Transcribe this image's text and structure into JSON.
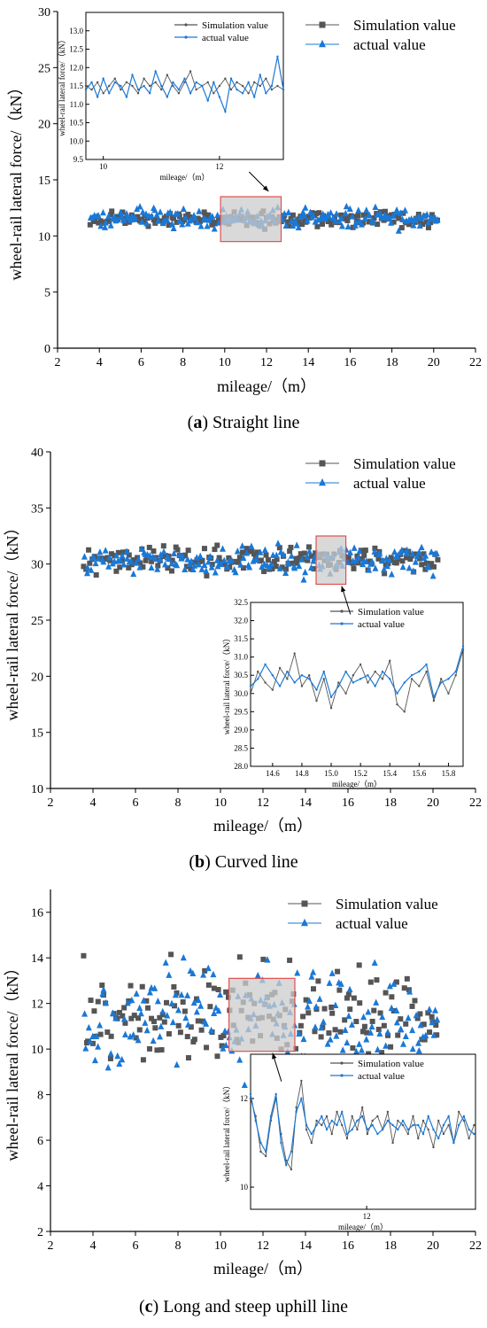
{
  "colors": {
    "sim": "#555555",
    "act": "#1a78d6",
    "box": "#e05050",
    "shade": "#cccccc"
  },
  "charts": [
    {
      "caption": {
        "letter": "a",
        "text": " Straight line"
      },
      "chart_data": {
        "type": "scatter",
        "xlabel": "mileage/（m）",
        "ylabel": "wheel-rail lateral force/（kN）",
        "xlim": [
          2,
          22
        ],
        "ylim": [
          0,
          30
        ],
        "xticks": [
          "2",
          "4",
          "6",
          "8",
          "10",
          "12",
          "14",
          "16",
          "18",
          "20",
          "22"
        ],
        "yticks": [
          "0",
          "5",
          "10",
          "15",
          "20",
          "25",
          "30"
        ],
        "legend": {
          "placement": "top-right"
        },
        "series": [
          {
            "name": "Simulation value",
            "marker": "square",
            "x_range": [
              3.6,
              20.2
            ],
            "mean": 11.5,
            "spread": 0.45
          },
          {
            "name": "actual value",
            "marker": "triangle",
            "x_range": [
              3.6,
              20.2
            ],
            "mean": 11.6,
            "spread": 0.55
          }
        ],
        "zoom_box": {
          "x": [
            9.8,
            12.7
          ],
          "y": [
            9.5,
            13.5
          ]
        },
        "inset": {
          "type": "line",
          "xlabel": "mileage/（m）",
          "ylabel": "wheel-rail lateral force/（kN）",
          "xlim": [
            9.7,
            13.1
          ],
          "ylim": [
            9.5,
            13.5
          ],
          "xticks": [
            "10",
            "12"
          ],
          "yticks": [
            "9.5",
            "10.0",
            "10.5",
            "11.0",
            "11.5",
            "12.0",
            "12.5",
            "13.0"
          ],
          "series": [
            {
              "name": "Simulation value",
              "x": [
                9.7,
                9.8,
                9.9,
                10.0,
                10.1,
                10.2,
                10.3,
                10.4,
                10.5,
                10.6,
                10.7,
                10.8,
                10.9,
                11.0,
                11.1,
                11.2,
                11.3,
                11.4,
                11.5,
                11.6,
                11.7,
                11.8,
                11.9,
                12.0,
                12.1,
                12.2,
                12.3,
                12.4,
                12.5,
                12.6,
                12.7,
                12.8,
                12.9,
                13.0,
                13.1
              ],
              "y": [
                11.5,
                11.4,
                11.6,
                11.3,
                11.5,
                11.7,
                11.4,
                11.6,
                11.5,
                11.3,
                11.7,
                11.5,
                11.6,
                11.4,
                11.8,
                11.5,
                11.3,
                11.6,
                11.9,
                11.4,
                11.5,
                11.6,
                11.3,
                11.5,
                11.7,
                11.4,
                11.6,
                11.5,
                11.3,
                11.6,
                11.5,
                11.7,
                11.4,
                11.5,
                11.4
              ]
            },
            {
              "name": "actual value",
              "x": [
                9.7,
                9.8,
                9.9,
                10.0,
                10.1,
                10.2,
                10.3,
                10.4,
                10.5,
                10.6,
                10.7,
                10.8,
                10.9,
                11.0,
                11.1,
                11.2,
                11.3,
                11.4,
                11.5,
                11.6,
                11.7,
                11.8,
                11.9,
                12.0,
                12.1,
                12.2,
                12.3,
                12.4,
                12.5,
                12.6,
                12.7,
                12.8,
                12.9,
                13.0,
                13.1
              ],
              "y": [
                11.4,
                11.6,
                11.2,
                11.7,
                11.3,
                11.6,
                11.5,
                11.2,
                11.8,
                11.4,
                11.5,
                11.3,
                11.9,
                11.5,
                11.2,
                11.6,
                11.4,
                11.7,
                11.3,
                11.6,
                11.5,
                11.1,
                11.6,
                11.2,
                10.8,
                11.7,
                11.4,
                11.3,
                11.6,
                11.2,
                11.8,
                11.3,
                11.5,
                12.3,
                11.4
              ]
            }
          ]
        }
      }
    },
    {
      "caption": {
        "letter": "b",
        "text": " Curved line"
      },
      "chart_data": {
        "type": "scatter",
        "xlabel": "mileage/（m）",
        "ylabel": "wheel-rail lateral force/（kN）",
        "xlim": [
          2,
          22
        ],
        "ylim": [
          10,
          40
        ],
        "xticks": [
          "2",
          "4",
          "6",
          "8",
          "10",
          "12",
          "14",
          "16",
          "18",
          "20",
          "22"
        ],
        "yticks": [
          "10",
          "15",
          "20",
          "25",
          "30",
          "35",
          "40"
        ],
        "legend": {
          "placement": "top-right"
        },
        "series": [
          {
            "name": "Simulation value",
            "marker": "square",
            "x_range": [
              3.6,
              20.2
            ],
            "mean": 30.4,
            "spread": 0.7
          },
          {
            "name": "actual value",
            "marker": "triangle",
            "x_range": [
              3.6,
              20.2
            ],
            "mean": 30.3,
            "spread": 0.8
          }
        ],
        "zoom_box": {
          "x": [
            14.5,
            15.9
          ],
          "y": [
            28.2,
            32.5
          ]
        },
        "inset": {
          "type": "line",
          "xlabel": "mileage/（m）",
          "ylabel": "wheel-rail lateral force/（kN）",
          "xlim": [
            14.45,
            15.9
          ],
          "ylim": [
            28.0,
            32.5
          ],
          "xticks": [
            "14.6",
            "14.8",
            "15.0",
            "15.2",
            "15.4",
            "15.6",
            "15.8"
          ],
          "yticks": [
            "28.0",
            "28.5",
            "29.0",
            "29.5",
            "30.0",
            "30.5",
            "31.0",
            "31.5",
            "32.0",
            "32.5"
          ],
          "series": [
            {
              "name": "Simulation value",
              "x": [
                14.45,
                14.5,
                14.55,
                14.6,
                14.65,
                14.7,
                14.75,
                14.8,
                14.85,
                14.9,
                14.95,
                15.0,
                15.05,
                15.1,
                15.15,
                15.2,
                15.25,
                15.3,
                15.35,
                15.4,
                15.45,
                15.5,
                15.55,
                15.6,
                15.65,
                15.7,
                15.75,
                15.8,
                15.85,
                15.9
              ],
              "y": [
                30.0,
                30.6,
                30.3,
                30.1,
                30.7,
                30.4,
                31.1,
                30.2,
                30.5,
                29.8,
                30.4,
                29.6,
                30.3,
                30.0,
                30.5,
                30.8,
                30.3,
                30.6,
                30.4,
                30.9,
                29.7,
                29.5,
                30.4,
                30.2,
                30.6,
                29.8,
                30.4,
                30.0,
                30.5,
                31.2
              ]
            },
            {
              "name": "actual value",
              "x": [
                14.45,
                14.5,
                14.55,
                14.6,
                14.65,
                14.7,
                14.75,
                14.8,
                14.85,
                14.9,
                14.95,
                15.0,
                15.05,
                15.1,
                15.15,
                15.2,
                15.25,
                15.3,
                15.35,
                15.4,
                15.45,
                15.5,
                15.55,
                15.6,
                15.65,
                15.7,
                15.75,
                15.8,
                15.85,
                15.9
              ],
              "y": [
                30.2,
                30.4,
                30.8,
                30.5,
                30.2,
                30.6,
                30.3,
                30.5,
                30.4,
                30.1,
                30.6,
                29.9,
                30.2,
                30.6,
                30.3,
                30.4,
                30.5,
                30.2,
                30.6,
                30.4,
                30.0,
                30.3,
                30.5,
                30.6,
                30.8,
                29.9,
                30.3,
                30.4,
                30.6,
                31.3
              ]
            }
          ]
        }
      }
    },
    {
      "caption": {
        "letter": "c",
        "text": " Long and steep uphill line"
      },
      "chart_data": {
        "type": "scatter",
        "xlabel": "mileage/（m）",
        "ylabel": "wheel-rail lateral force/（kN）",
        "xlim": [
          2,
          22
        ],
        "ylim": [
          2,
          17
        ],
        "xticks": [
          "2",
          "4",
          "6",
          "8",
          "10",
          "12",
          "14",
          "16",
          "18",
          "20",
          "22"
        ],
        "yticks": [
          "2",
          "4",
          "6",
          "8",
          "10",
          "12",
          "14",
          "16"
        ],
        "legend": {
          "placement": "top-right"
        },
        "series": [
          {
            "name": "Simulation value",
            "marker": "square",
            "x_range": [
              3.6,
              20.2
            ],
            "mean": 11.4,
            "spread": 1.3
          },
          {
            "name": "actual value",
            "marker": "triangle",
            "x_range": [
              3.6,
              20.2
            ],
            "mean": 11.4,
            "spread": 1.4
          }
        ],
        "zoom_box": {
          "x": [
            10.4,
            13.5
          ],
          "y": [
            9.9,
            13.1
          ]
        },
        "inset": {
          "type": "line",
          "xlabel": "mileage/（m）",
          "ylabel": "wheel-rail lateral force/（kN）",
          "xlim": [
            10.4,
            13.5
          ],
          "ylim": [
            9.5,
            13.0
          ],
          "xticks": [
            "12"
          ],
          "yticks": [
            "10",
            "12"
          ],
          "series": [
            {
              "name": "Simulation value",
              "x": [
                10.4,
                10.47,
                10.54,
                10.61,
                10.68,
                10.75,
                10.82,
                10.89,
                10.96,
                11.03,
                11.1,
                11.17,
                11.24,
                11.31,
                11.38,
                11.45,
                11.52,
                11.59,
                11.66,
                11.73,
                11.8,
                11.87,
                11.94,
                12.01,
                12.08,
                12.15,
                12.22,
                12.29,
                12.36,
                12.43,
                12.5,
                12.57,
                12.64,
                12.71,
                12.78,
                12.85,
                12.92,
                12.99,
                13.06,
                13.13,
                13.2,
                13.27,
                13.34,
                13.41,
                13.48
              ],
              "y": [
                12.0,
                11.6,
                10.8,
                10.7,
                11.5,
                12.0,
                11.2,
                10.6,
                10.4,
                11.8,
                12.4,
                11.3,
                11.0,
                11.5,
                11.4,
                11.6,
                11.2,
                11.7,
                11.4,
                11.1,
                11.6,
                11.3,
                11.8,
                11.2,
                11.5,
                11.6,
                11.3,
                11.7,
                11.0,
                11.5,
                11.4,
                11.2,
                11.6,
                11.1,
                11.5,
                11.3,
                10.9,
                11.5,
                11.2,
                11.4,
                11.0,
                11.7,
                11.5,
                11.1,
                11.4
              ]
            },
            {
              "name": "actual value",
              "x": [
                10.4,
                10.47,
                10.54,
                10.61,
                10.68,
                10.75,
                10.82,
                10.89,
                10.96,
                11.03,
                11.1,
                11.17,
                11.24,
                11.31,
                11.38,
                11.45,
                11.52,
                11.59,
                11.66,
                11.73,
                11.8,
                11.87,
                11.94,
                12.01,
                12.08,
                12.15,
                12.22,
                12.29,
                12.36,
                12.43,
                12.5,
                12.57,
                12.64,
                12.71,
                12.78,
                12.85,
                12.92,
                12.99,
                13.06,
                13.13,
                13.2,
                13.27,
                13.34,
                13.41,
                13.48
              ],
              "y": [
                12.1,
                11.5,
                11.0,
                10.8,
                11.6,
                12.1,
                11.0,
                10.5,
                10.8,
                11.7,
                12.0,
                11.4,
                11.2,
                11.4,
                11.6,
                11.3,
                11.5,
                11.4,
                11.7,
                11.2,
                11.3,
                11.5,
                11.6,
                11.3,
                11.4,
                11.2,
                11.3,
                11.5,
                11.4,
                11.3,
                11.5,
                11.3,
                11.4,
                11.4,
                11.2,
                11.6,
                11.3,
                11.1,
                11.4,
                11.6,
                11.0,
                11.4,
                11.6,
                11.3,
                11.2
              ]
            }
          ]
        }
      }
    }
  ]
}
